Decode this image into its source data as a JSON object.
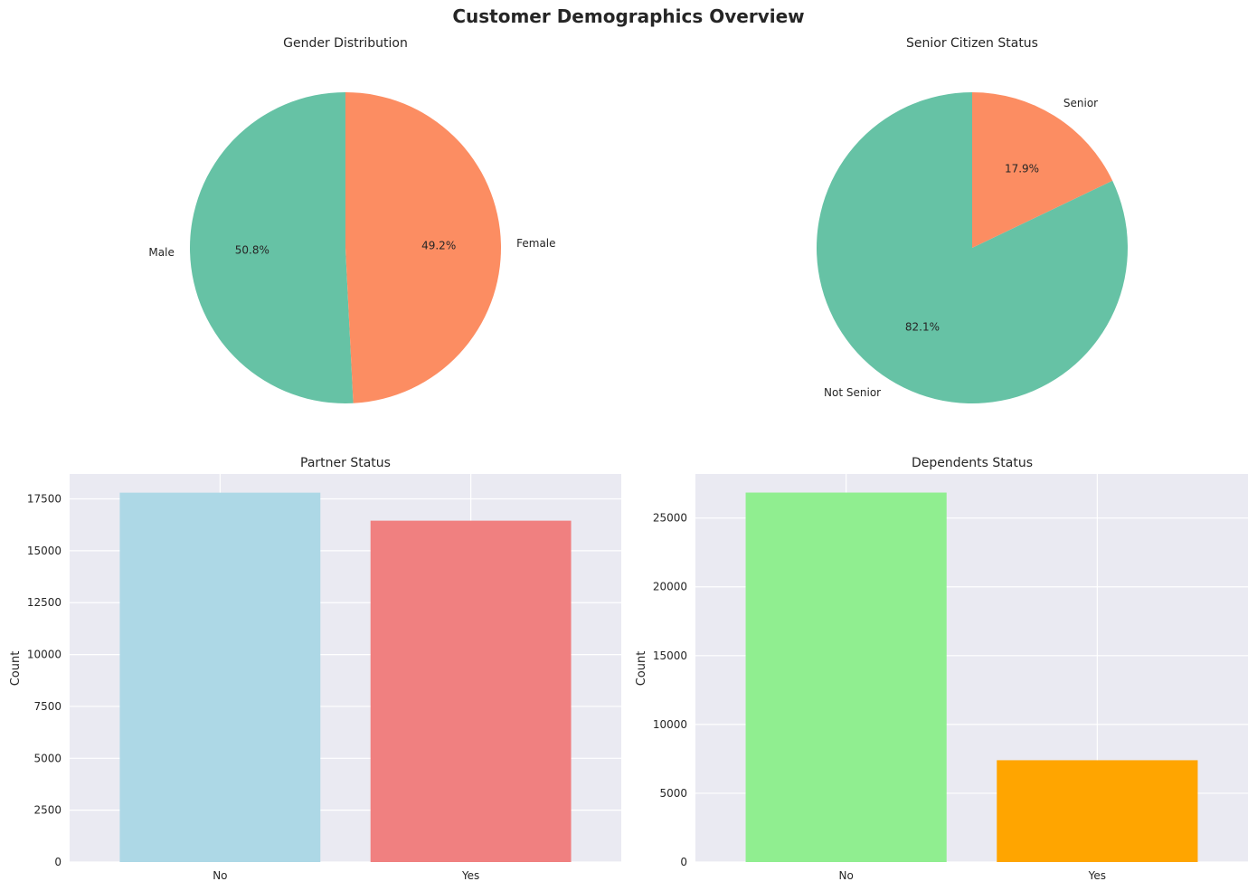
{
  "suptitle": "Customer Demographics Overview",
  "chart_data": [
    {
      "type": "pie",
      "title": "Gender Distribution",
      "labels": [
        "Male",
        "Female"
      ],
      "percent_labels": [
        "50.8%",
        "49.2%"
      ],
      "values": [
        50.8,
        49.2
      ],
      "colors": [
        "#66c2a5",
        "#fc8d62"
      ],
      "start_angle_deg": 90
    },
    {
      "type": "pie",
      "title": "Senior Citizen Status",
      "labels": [
        "Not Senior",
        "Senior"
      ],
      "percent_labels": [
        "82.1%",
        "17.9%"
      ],
      "values": [
        82.1,
        17.9
      ],
      "colors": [
        "#66c2a5",
        "#fc8d62"
      ],
      "start_angle_deg": 90
    },
    {
      "type": "bar",
      "title": "Partner Status",
      "categories": [
        "No",
        "Yes"
      ],
      "values": [
        17800,
        16450
      ],
      "colors": [
        "#add8e6",
        "#f08080"
      ],
      "ylabel": "Count",
      "ylim": [
        0,
        18700
      ],
      "yticks": [
        0,
        2500,
        5000,
        7500,
        10000,
        12500,
        15000,
        17500
      ],
      "grid": true
    },
    {
      "type": "bar",
      "title": "Dependents Status",
      "categories": [
        "No",
        "Yes"
      ],
      "values": [
        26850,
        7400
      ],
      "colors": [
        "#90ee90",
        "#ffa500"
      ],
      "ylabel": "Count",
      "ylim": [
        0,
        28200
      ],
      "yticks": [
        0,
        5000,
        10000,
        15000,
        20000,
        25000
      ],
      "grid": true
    }
  ]
}
